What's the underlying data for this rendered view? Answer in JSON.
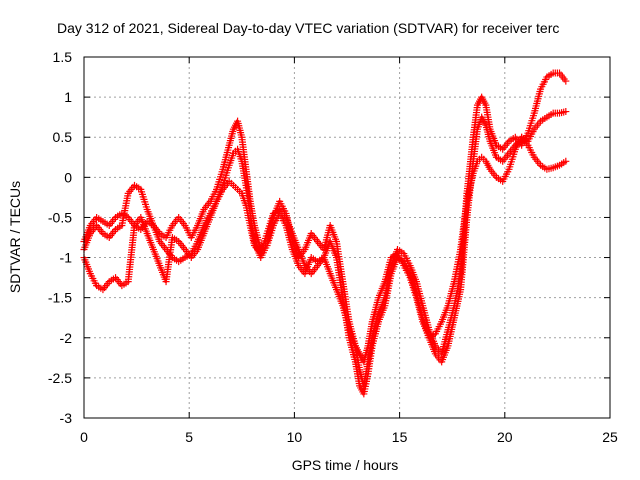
{
  "chart_data": {
    "type": "scatter",
    "title": "Day 312 of 2021, Sidereal Day-to-day VTEC variation (SDTVAR) for receiver terc",
    "xlabel": "GPS time / hours",
    "ylabel": "SDTVAR / TECUs",
    "xlim": [
      0,
      25
    ],
    "ylim": [
      -3,
      1.5
    ],
    "x_ticks": [
      0,
      5,
      10,
      15,
      20,
      25
    ],
    "x_tick_labels": [
      "0",
      "5",
      "10",
      "15",
      "20",
      "25"
    ],
    "y_ticks": [
      -3,
      -2.5,
      -2,
      -1.5,
      -1,
      -0.5,
      0,
      0.5,
      1,
      1.5
    ],
    "y_tick_labels": [
      "-3",
      "-2.5",
      "-2",
      "-1.5",
      "-1",
      "-0.5",
      "0",
      "0.5",
      "1",
      "1.5"
    ],
    "grid": true,
    "marker": "+",
    "color": "#ff0000",
    "series": [
      {
        "x": [
          0.0,
          0.3,
          0.6,
          0.9,
          1.2,
          1.5,
          1.8,
          2.1,
          2.4,
          2.7,
          3.0,
          3.3,
          3.6,
          3.9,
          4.2,
          4.5,
          4.8,
          5.1,
          5.4,
          5.7,
          6.0,
          6.3,
          6.6,
          6.9,
          7.1,
          7.3,
          7.5,
          7.7,
          7.9,
          8.1,
          8.4,
          8.7,
          9.0,
          9.3,
          9.6,
          9.9,
          10.2,
          10.5,
          10.8,
          11.1,
          11.4,
          11.7,
          12.0,
          12.3,
          12.6,
          12.9,
          13.1,
          13.3,
          13.5,
          13.7,
          14.0,
          14.3,
          14.6,
          14.9,
          15.2,
          15.5,
          15.8,
          16.1,
          16.4,
          16.7,
          17.0,
          17.3,
          17.6,
          17.9,
          18.2,
          18.5,
          18.7,
          18.9,
          19.1,
          19.3,
          19.6,
          19.9,
          20.2,
          20.5,
          20.8,
          21.1,
          21.4,
          21.7,
          22.0,
          22.3,
          22.6,
          22.9
        ],
        "y": [
          -0.8,
          -0.6,
          -0.5,
          -0.55,
          -0.6,
          -0.5,
          -0.45,
          -0.5,
          -0.6,
          -0.65,
          -0.55,
          -0.6,
          -0.7,
          -0.75,
          -0.6,
          -0.5,
          -0.6,
          -0.75,
          -0.6,
          -0.4,
          -0.3,
          -0.15,
          0.1,
          0.4,
          0.6,
          0.7,
          0.5,
          0.1,
          -0.3,
          -0.6,
          -0.9,
          -0.8,
          -0.5,
          -0.3,
          -0.45,
          -0.8,
          -1.0,
          -0.9,
          -0.7,
          -0.8,
          -0.9,
          -0.6,
          -0.8,
          -1.3,
          -1.8,
          -2.1,
          -2.4,
          -2.6,
          -2.3,
          -2.0,
          -1.7,
          -1.5,
          -1.1,
          -0.9,
          -0.95,
          -1.1,
          -1.3,
          -1.6,
          -1.9,
          -2.1,
          -2.2,
          -1.9,
          -1.6,
          -1.2,
          -0.2,
          0.5,
          0.9,
          1.0,
          0.9,
          0.6,
          0.4,
          0.35,
          0.45,
          0.5,
          0.4,
          0.55,
          0.8,
          1.1,
          1.25,
          1.3,
          1.3,
          1.2
        ]
      },
      {
        "x": [
          0.0,
          0.3,
          0.6,
          0.9,
          1.2,
          1.5,
          1.8,
          2.1,
          2.4,
          2.7,
          3.0,
          3.3,
          3.6,
          3.9,
          4.2,
          4.5,
          4.8,
          5.1,
          5.4,
          5.7,
          6.0,
          6.3,
          6.6,
          6.9,
          7.1,
          7.3,
          7.5,
          7.7,
          7.9,
          8.1,
          8.4,
          8.7,
          9.0,
          9.3,
          9.6,
          9.9,
          10.2,
          10.5,
          10.8,
          11.1,
          11.4,
          11.7,
          12.0,
          12.3,
          12.6,
          12.9,
          13.1,
          13.3,
          13.5,
          13.7,
          14.0,
          14.3,
          14.6,
          14.9,
          15.2,
          15.5,
          15.8,
          16.1,
          16.4,
          16.7,
          17.0,
          17.3,
          17.6,
          17.9,
          18.2,
          18.5,
          18.7,
          18.9,
          19.1,
          19.3,
          19.6,
          19.9,
          20.2,
          20.5,
          20.8,
          21.1,
          21.4,
          21.7,
          22.0,
          22.3,
          22.6,
          22.9
        ],
        "y": [
          -1.0,
          -1.2,
          -1.35,
          -1.4,
          -1.3,
          -1.25,
          -1.35,
          -1.3,
          -0.6,
          -0.5,
          -0.7,
          -0.9,
          -1.1,
          -1.3,
          -0.75,
          -0.8,
          -0.9,
          -1.0,
          -0.9,
          -0.7,
          -0.5,
          -0.3,
          -0.1,
          0.15,
          0.3,
          0.35,
          0.2,
          -0.1,
          -0.45,
          -0.8,
          -1.0,
          -0.85,
          -0.6,
          -0.45,
          -0.6,
          -0.9,
          -1.1,
          -1.2,
          -1.0,
          -1.05,
          -1.0,
          -0.8,
          -1.0,
          -1.5,
          -2.0,
          -2.3,
          -2.6,
          -2.7,
          -2.45,
          -2.1,
          -1.8,
          -1.6,
          -1.2,
          -1.0,
          -1.05,
          -1.2,
          -1.45,
          -1.75,
          -2.0,
          -2.2,
          -2.3,
          -2.1,
          -1.75,
          -1.4,
          -0.5,
          0.2,
          0.6,
          0.75,
          0.65,
          0.45,
          0.25,
          0.2,
          0.3,
          0.4,
          0.5,
          0.45,
          0.6,
          0.7,
          0.75,
          0.8,
          0.8,
          0.82
        ]
      },
      {
        "x": [
          0.0,
          0.3,
          0.6,
          0.9,
          1.2,
          1.5,
          1.8,
          2.1,
          2.4,
          2.7,
          3.0,
          3.3,
          3.6,
          3.9,
          4.2,
          4.5,
          4.8,
          5.1,
          5.4,
          5.7,
          6.0,
          6.3,
          6.6,
          6.9,
          7.1,
          7.3,
          7.5,
          7.7,
          7.9,
          8.1,
          8.4,
          8.7,
          9.0,
          9.3,
          9.6,
          9.9,
          10.2,
          10.5,
          10.8,
          11.1,
          11.4,
          11.7,
          12.0,
          12.3,
          12.6,
          12.9,
          13.1,
          13.3,
          13.5,
          13.7,
          14.0,
          14.3,
          14.6,
          14.9,
          15.2,
          15.5,
          15.8,
          16.1,
          16.4,
          16.7,
          17.0,
          17.3,
          17.6,
          17.9,
          18.2,
          18.5,
          18.7,
          18.9,
          19.1,
          19.3,
          19.6,
          19.9,
          20.2,
          20.5,
          20.8,
          21.1,
          21.4,
          21.7,
          22.0,
          22.3,
          22.6,
          22.9
        ],
        "y": [
          -0.9,
          -0.7,
          -0.6,
          -0.7,
          -0.75,
          -0.65,
          -0.6,
          -0.2,
          -0.1,
          -0.15,
          -0.4,
          -0.6,
          -0.8,
          -0.9,
          -1.0,
          -1.05,
          -1.0,
          -0.95,
          -0.8,
          -0.6,
          -0.45,
          -0.3,
          -0.15,
          -0.05,
          -0.1,
          -0.15,
          -0.2,
          -0.35,
          -0.6,
          -0.85,
          -0.95,
          -0.7,
          -0.45,
          -0.4,
          -0.5,
          -0.7,
          -0.9,
          -1.1,
          -1.2,
          -1.1,
          -1.0,
          -1.2,
          -1.4,
          -1.6,
          -1.9,
          -2.1,
          -2.2,
          -2.3,
          -2.1,
          -1.8,
          -1.5,
          -1.3,
          -1.0,
          -0.95,
          -1.1,
          -1.25,
          -1.5,
          -1.8,
          -2.0,
          -1.95,
          -1.8,
          -1.6,
          -1.3,
          -0.9,
          -0.3,
          0.05,
          0.2,
          0.25,
          0.2,
          0.1,
          0.0,
          -0.05,
          0.1,
          0.35,
          0.5,
          0.4,
          0.25,
          0.15,
          0.1,
          0.12,
          0.15,
          0.2
        ]
      }
    ]
  }
}
